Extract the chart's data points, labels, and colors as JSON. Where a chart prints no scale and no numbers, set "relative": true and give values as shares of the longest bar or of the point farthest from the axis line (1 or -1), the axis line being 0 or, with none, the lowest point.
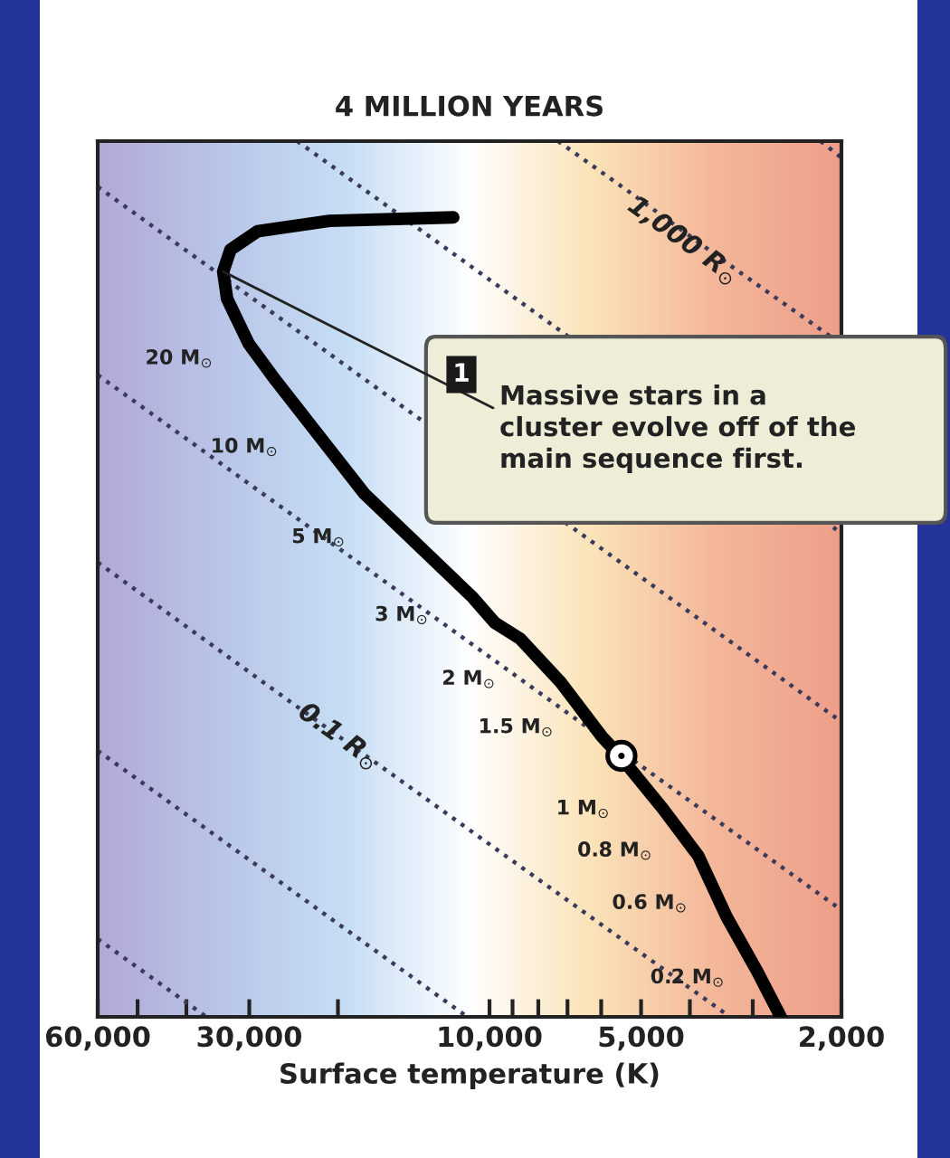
{
  "chart_data": {
    "type": "line",
    "title": "4 MILLION YEARS",
    "xlabel": "Surface temperature (K)",
    "log": "x",
    "relative": true,
    "xlim": [
      60000,
      2000
    ],
    "xticks": [
      {
        "value": 60000,
        "label": "60,000"
      },
      {
        "value": 50000,
        "label": null
      },
      {
        "value": 40000,
        "label": null
      },
      {
        "value": 30000,
        "label": "30,000"
      },
      {
        "value": 20000,
        "label": null
      },
      {
        "value": 10000,
        "label": "10,000"
      },
      {
        "value": 9000,
        "label": null
      },
      {
        "value": 8000,
        "label": null
      },
      {
        "value": 7000,
        "label": null
      },
      {
        "value": 6000,
        "label": null
      },
      {
        "value": 5000,
        "label": "5,000"
      },
      {
        "value": 4000,
        "label": null
      },
      {
        "value": 3000,
        "label": null
      },
      {
        "value": 2000,
        "label": "2,000"
      }
    ],
    "tick_labels": "x",
    "series": [
      {
        "line_style": "dotted",
        "color": "#3a3a5a",
        "x": [
          2200,
          2000
        ],
        "values": [
          1,
          0.981
        ]
      },
      {
        "line_style": "dotted",
        "color": "#3a3a5a",
        "x": [
          7310,
          5160,
          4130,
          3270,
          2080
        ],
        "values": [
          1,
          0.938,
          null,
          0.855,
          0.775
        ]
      },
      {
        "line_style": "dotted",
        "color": "#3a3a5a",
        "x": [
          24100,
          6900,
          4000,
          2110,
          2000
        ],
        "values": [
          1,
          0.775,
          null,
          0.562,
          0.552
        ]
      },
      {
        "line_style": "dotted",
        "color": "#3a3a5a",
        "x": [
          60000,
          13400,
          10000,
          6820,
          2000
        ],
        "values": [
          0.948,
          0.678,
          null,
          0.558,
          0.337
        ]
      },
      {
        "line_style": "dotted",
        "color": "#3a3a5a",
        "x": [
          60000,
          2000
        ],
        "values": [
          0.733,
          0.122
        ]
      },
      {
        "line_style": "dotted",
        "color": "#3a3a5a",
        "x": [
          60000,
          24900,
          19950,
          15800,
          3330
        ],
        "values": [
          0.519,
          0.36,
          null,
          0.279,
          0
        ]
      },
      {
        "line_style": "dotted",
        "color": "#3a3a5a",
        "x": [
          60000,
          11070
        ],
        "values": [
          0.304,
          0
        ]
      },
      {
        "line_style": "dotted",
        "color": "#3a3a5a",
        "x": [
          60000,
          36500
        ],
        "values": [
          0.089,
          0
        ]
      },
      {
        "line_style": "solid",
        "color": "#000000",
        "x": [
          11800,
          20800,
          28900,
          32700,
          33800,
          33200,
          30100,
          26600,
          17700,
          10800,
          9760,
          8700,
          7220,
          5980,
          5510,
          4530,
          3850,
          3380,
          2940,
          2640
        ],
        "values": [
          0.913,
          0.909,
          0.897,
          0.876,
          0.851,
          0.82,
          0.769,
          0.727,
          0.597,
          0.479,
          0.45,
          0.432,
          0.382,
          0.32,
          0.298,
          0.238,
          0.184,
          0.114,
          0.052,
          0
        ]
      },
      {
        "type": "scatter",
        "marker": "circle",
        "color": "#000000",
        "x": [
          5470
        ],
        "values": [
          0.298
        ]
      }
    ],
    "annotations": [
      {
        "text": "Massive stars in a\ncluster evolve off of the\nmain sequence first.",
        "x": 33800,
        "y": 0.851
      },
      "1",
      {
        "text": "1,000 R$_{⊙}$",
        "x": 4130,
        "y": 0.886
      },
      {
        "text": "0.1 R$_{⊙}$",
        "x": 19950,
        "y": 0.32
      },
      {
        "text": "20 M$_{⊙}$",
        "x": 31400,
        "y": 0.783
      },
      {
        "text": "10 M$_{⊙}$",
        "x": 23300,
        "y": 0.682
      },
      {
        "text": "5 M$_{⊙}$",
        "x": 16600,
        "y": 0.579
      },
      {
        "text": "3 M$_{⊙}$",
        "x": 11350,
        "y": 0.49
      },
      {
        "text": "2 M$_{⊙}$",
        "x": 8350,
        "y": 0.417
      },
      {
        "text": "1.5 M$_{⊙}$",
        "x": 6730,
        "y": 0.362
      },
      {
        "text": "1 M$_{⊙}$",
        "x": 4950,
        "y": 0.269
      },
      {
        "text": "0.8 M$_{⊙}$",
        "x": 4280,
        "y": 0.221
      },
      {
        "text": "0.6 M$_{⊙}$",
        "x": 3650,
        "y": 0.161
      },
      {
        "text": "0.2 M$_{⊙}$",
        "x": 3070,
        "y": 0.076
      }
    ]
  }
}
